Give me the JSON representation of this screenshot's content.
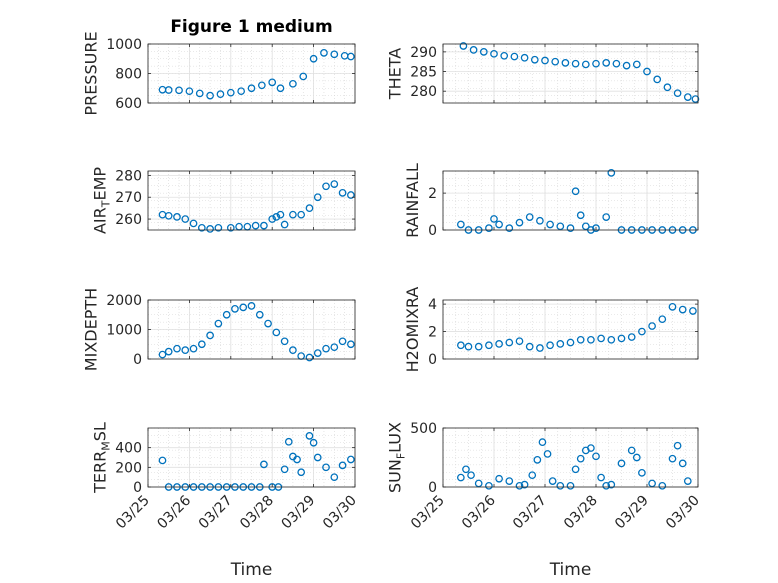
{
  "figure": {
    "title": "Figure 1 medium",
    "marker_color": "#0072BD"
  },
  "chart_data": [
    {
      "type": "scatter",
      "ylabel": "PRESSURE",
      "title": "Figure 1 medium",
      "xlabel": "",
      "xlim": [
        0,
        5
      ],
      "x_tick_labels": [
        "03/25",
        "03/26",
        "03/27",
        "03/28",
        "03/29",
        "03/30"
      ],
      "ylim": [
        600,
        1000
      ],
      "yticks": [
        600,
        800,
        1000
      ],
      "grid": true,
      "x": [
        0.35,
        0.5,
        0.75,
        1.0,
        1.25,
        1.5,
        1.75,
        2.0,
        2.25,
        2.5,
        2.75,
        3.0,
        3.2,
        3.5,
        3.75,
        4.0,
        4.25,
        4.5,
        4.75,
        4.9
      ],
      "y": [
        690,
        688,
        686,
        680,
        665,
        650,
        660,
        670,
        680,
        700,
        720,
        740,
        700,
        730,
        780,
        900,
        940,
        930,
        920,
        915
      ]
    },
    {
      "type": "scatter",
      "ylabel": "THETA",
      "xlabel": "",
      "xlim": [
        0,
        5
      ],
      "x_tick_labels": [
        "03/25",
        "03/26",
        "03/27",
        "03/28",
        "03/29",
        "03/30"
      ],
      "ylim": [
        277,
        292
      ],
      "yticks": [
        280,
        285,
        290
      ],
      "grid": true,
      "x": [
        0.4,
        0.6,
        0.8,
        1.0,
        1.2,
        1.4,
        1.6,
        1.8,
        2.0,
        2.2,
        2.4,
        2.6,
        2.8,
        3.0,
        3.2,
        3.4,
        3.6,
        3.8,
        4.0,
        4.2,
        4.4,
        4.6,
        4.8,
        4.95
      ],
      "y": [
        291.5,
        290.5,
        290.0,
        289.5,
        289.0,
        288.8,
        288.5,
        288.0,
        287.8,
        287.5,
        287.2,
        287.0,
        286.8,
        287.0,
        287.2,
        287.0,
        286.5,
        286.8,
        285.0,
        283.0,
        281.0,
        279.5,
        278.5,
        278.0
      ]
    },
    {
      "type": "scatter",
      "ylabel": "AIR_TEMP",
      "xlabel": "",
      "xlim": [
        0,
        5
      ],
      "x_tick_labels": [
        "03/25",
        "03/26",
        "03/27",
        "03/28",
        "03/29",
        "03/30"
      ],
      "ylim": [
        255,
        282
      ],
      "yticks": [
        260,
        270,
        280
      ],
      "grid": true,
      "x": [
        0.35,
        0.5,
        0.7,
        0.9,
        1.1,
        1.3,
        1.5,
        1.7,
        2.0,
        2.2,
        2.4,
        2.6,
        2.8,
        3.0,
        3.1,
        3.2,
        3.3,
        3.5,
        3.7,
        3.9,
        4.1,
        4.3,
        4.5,
        4.7,
        4.9
      ],
      "y": [
        262,
        261.5,
        261,
        260,
        258,
        256,
        255.5,
        256,
        256,
        256.5,
        256.5,
        257,
        257,
        260,
        261,
        262,
        257.5,
        262,
        262,
        265,
        270,
        275,
        276,
        272,
        271
      ]
    },
    {
      "type": "scatter",
      "ylabel": "RAINFALL",
      "xlabel": "",
      "xlim": [
        0,
        5
      ],
      "x_tick_labels": [
        "03/25",
        "03/26",
        "03/27",
        "03/28",
        "03/29",
        "03/30"
      ],
      "ylim": [
        0,
        3.2
      ],
      "yticks": [
        0,
        2
      ],
      "grid": true,
      "x": [
        0.35,
        0.5,
        0.7,
        0.9,
        1.0,
        1.1,
        1.3,
        1.5,
        1.7,
        1.9,
        2.1,
        2.3,
        2.5,
        2.6,
        2.7,
        2.8,
        2.9,
        3.0,
        3.2,
        3.3,
        3.5,
        3.7,
        3.9,
        4.1,
        4.3,
        4.5,
        4.7,
        4.9
      ],
      "y": [
        0.3,
        0.0,
        0.0,
        0.1,
        0.6,
        0.3,
        0.1,
        0.4,
        0.7,
        0.5,
        0.3,
        0.2,
        0.1,
        2.1,
        0.8,
        0.2,
        0.0,
        0.1,
        0.7,
        3.1,
        0.0,
        0.0,
        0.0,
        0.0,
        0.0,
        0.0,
        0.0,
        0.0
      ]
    },
    {
      "type": "scatter",
      "ylabel": "MIXDEPTH",
      "xlabel": "",
      "xlim": [
        0,
        5
      ],
      "x_tick_labels": [
        "03/25",
        "03/26",
        "03/27",
        "03/28",
        "03/29",
        "03/30"
      ],
      "ylim": [
        0,
        2000
      ],
      "yticks": [
        0,
        1000,
        2000
      ],
      "grid": true,
      "x": [
        0.35,
        0.5,
        0.7,
        0.9,
        1.1,
        1.3,
        1.5,
        1.7,
        1.9,
        2.1,
        2.3,
        2.5,
        2.7,
        2.9,
        3.1,
        3.3,
        3.5,
        3.7,
        3.9,
        4.1,
        4.3,
        4.5,
        4.7,
        4.9
      ],
      "y": [
        150,
        250,
        350,
        300,
        350,
        500,
        800,
        1200,
        1500,
        1700,
        1750,
        1800,
        1500,
        1200,
        900,
        600,
        300,
        100,
        50,
        200,
        350,
        400,
        600,
        500
      ]
    },
    {
      "type": "scatter",
      "ylabel": "H2OMIXRA",
      "xlabel": "",
      "xlim": [
        0,
        5
      ],
      "x_tick_labels": [
        "03/25",
        "03/26",
        "03/27",
        "03/28",
        "03/29",
        "03/30"
      ],
      "ylim": [
        0,
        4.3
      ],
      "yticks": [
        0,
        2,
        4
      ],
      "grid": true,
      "x": [
        0.35,
        0.5,
        0.7,
        0.9,
        1.1,
        1.3,
        1.5,
        1.7,
        1.9,
        2.1,
        2.3,
        2.5,
        2.7,
        2.9,
        3.1,
        3.3,
        3.5,
        3.7,
        3.9,
        4.1,
        4.3,
        4.5,
        4.7,
        4.9
      ],
      "y": [
        1.0,
        0.9,
        0.9,
        1.0,
        1.1,
        1.2,
        1.3,
        0.9,
        0.8,
        1.0,
        1.1,
        1.2,
        1.4,
        1.4,
        1.5,
        1.4,
        1.5,
        1.6,
        2.0,
        2.4,
        2.9,
        3.8,
        3.6,
        3.5
      ]
    },
    {
      "type": "scatter",
      "ylabel": "TERR_MSL",
      "xlabel": "Time",
      "xlim": [
        0,
        5
      ],
      "x_tick_labels": [
        "03/25",
        "03/26",
        "03/27",
        "03/28",
        "03/29",
        "03/30"
      ],
      "ylim": [
        0,
        600
      ],
      "yticks": [
        0,
        200,
        400
      ],
      "grid": true,
      "x": [
        0.35,
        0.5,
        0.7,
        0.9,
        1.1,
        1.3,
        1.5,
        1.7,
        1.9,
        2.1,
        2.3,
        2.5,
        2.7,
        2.8,
        3.0,
        3.15,
        3.3,
        3.4,
        3.5,
        3.6,
        3.7,
        3.8,
        3.9,
        4.0,
        4.1,
        4.3,
        4.5,
        4.7,
        4.9
      ],
      "y": [
        270,
        0,
        0,
        0,
        0,
        0,
        0,
        0,
        0,
        0,
        0,
        0,
        0,
        230,
        0,
        0,
        180,
        460,
        310,
        280,
        150,
        610,
        520,
        450,
        300,
        200,
        100,
        220,
        280
      ]
    },
    {
      "type": "scatter",
      "ylabel": "SUN_FLUX",
      "xlabel": "Time",
      "xlim": [
        0,
        5
      ],
      "x_tick_labels": [
        "03/25",
        "03/26",
        "03/27",
        "03/28",
        "03/29",
        "03/30"
      ],
      "ylim": [
        0,
        500
      ],
      "yticks": [
        0,
        500
      ],
      "grid": true,
      "x": [
        0.35,
        0.45,
        0.55,
        0.7,
        0.9,
        1.1,
        1.3,
        1.5,
        1.6,
        1.75,
        1.85,
        1.95,
        2.05,
        2.15,
        2.3,
        2.5,
        2.6,
        2.7,
        2.8,
        2.9,
        3.0,
        3.1,
        3.2,
        3.3,
        3.5,
        3.7,
        3.8,
        3.9,
        4.1,
        4.3,
        4.5,
        4.6,
        4.7,
        4.8
      ],
      "y": [
        80,
        150,
        100,
        30,
        10,
        70,
        50,
        10,
        20,
        100,
        230,
        380,
        280,
        50,
        10,
        10,
        150,
        240,
        310,
        330,
        260,
        80,
        10,
        20,
        200,
        310,
        250,
        120,
        30,
        10,
        240,
        350,
        200,
        50
      ]
    }
  ]
}
